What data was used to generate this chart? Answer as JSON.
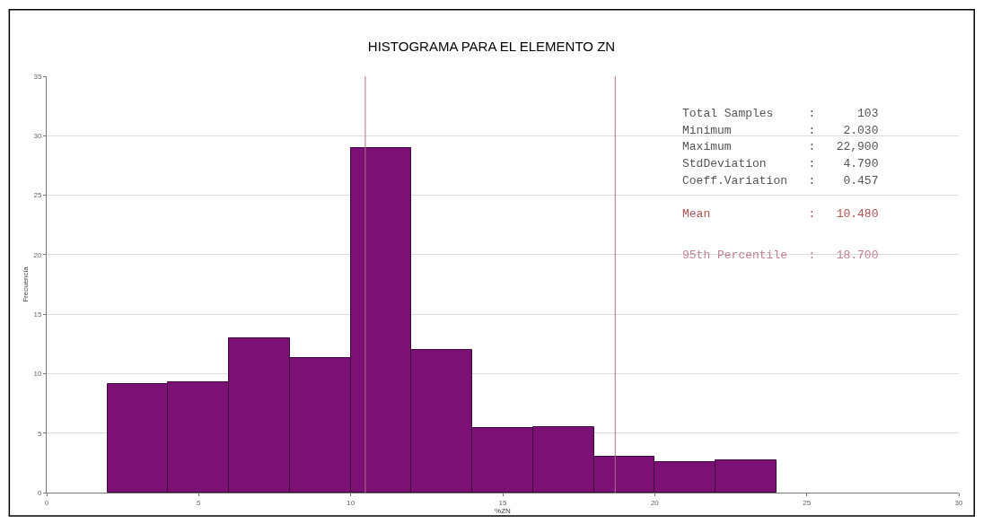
{
  "chart_data": {
    "type": "histogram",
    "title": "HISTOGRAMA PARA EL ELEMENTO ZN",
    "xlabel": "%ZN",
    "ylabel": "Frecuencia",
    "bins": [
      2,
      4,
      6,
      8,
      10,
      12,
      14,
      16,
      18,
      20,
      22,
      24
    ],
    "values": [
      9.1,
      9.3,
      13,
      11.3,
      29,
      12,
      5.4,
      5.5,
      3,
      2.6,
      2.7
    ],
    "color": "#7b1175",
    "xlim": [
      0,
      30
    ],
    "xticks": [
      0,
      5,
      10,
      15,
      20,
      25,
      30
    ],
    "ylim": [
      0,
      35
    ],
    "yticks": [
      0,
      5,
      10,
      15,
      20,
      25,
      30,
      35
    ],
    "grid": "y",
    "ref_lines": [
      {
        "axis": "x",
        "value": 10.48,
        "color": "#b07080"
      },
      {
        "axis": "x",
        "value": 18.7,
        "color": "#b07080"
      }
    ],
    "annotations": [
      "Total Samples     :      103",
      "Minimum           :    2.030",
      "Maximum           :   22,900",
      "StdDeviation      :    4.790",
      "Coeff.Variation   :    0.457",
      "Mean              :   10.480",
      "95th Percentile   :   18.700"
    ]
  }
}
